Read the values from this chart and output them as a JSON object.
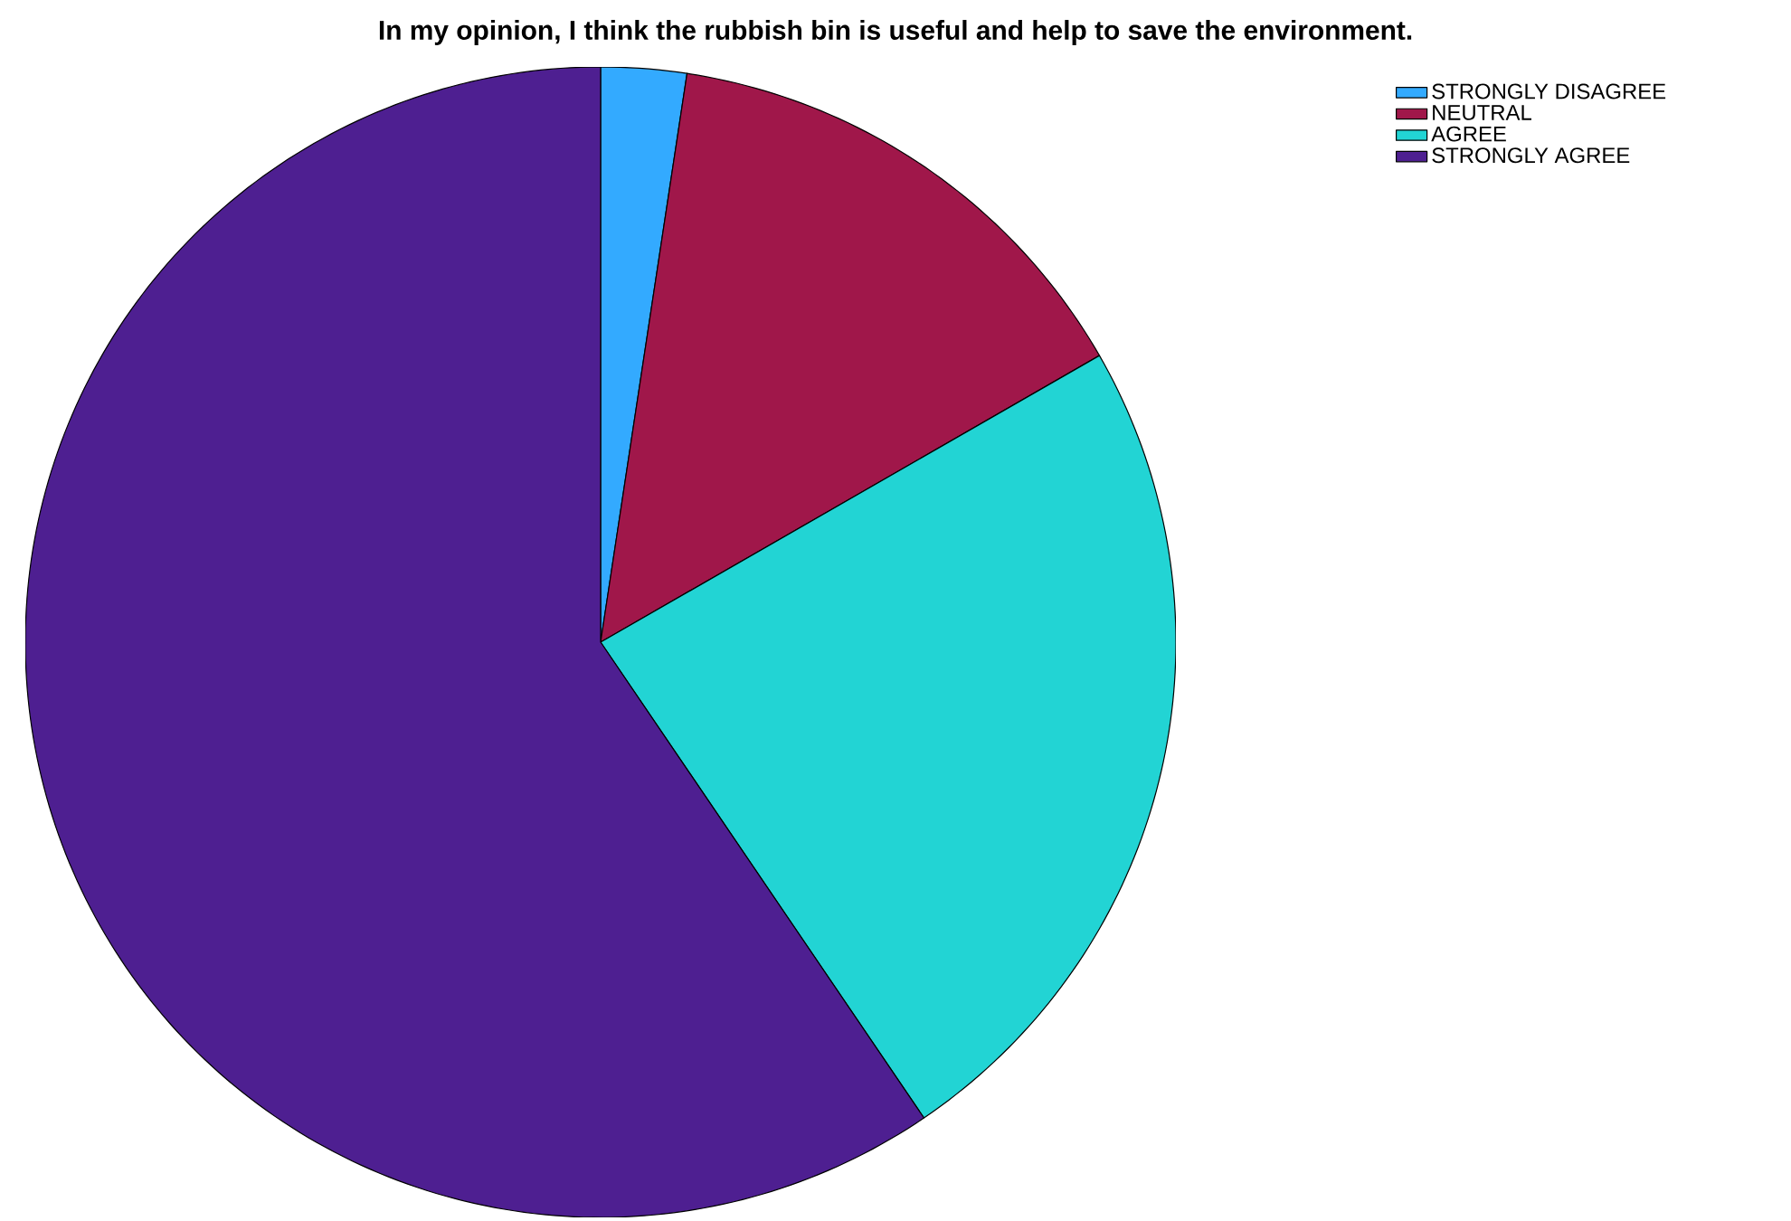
{
  "chart_data": {
    "type": "pie",
    "title": "In my opinion, I think the rubbish bin is useful and help to save the environment.",
    "categories": [
      "STRONGLY DISAGREE",
      "NEUTRAL",
      "AGREE",
      "STRONGLY AGREE"
    ],
    "values": [
      2.4,
      14.3,
      23.8,
      59.5
    ],
    "colors": [
      "#33aaff",
      "#a0174a",
      "#22d4d4",
      "#4e1f91"
    ],
    "legend": "top right"
  }
}
